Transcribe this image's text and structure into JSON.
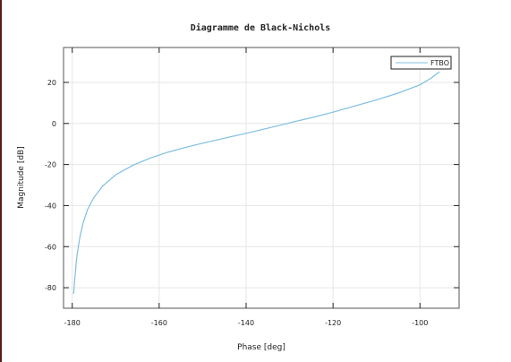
{
  "chart_data": {
    "type": "line",
    "title": "Diagramme de Black-Nichols",
    "xlabel": "Phase [deg]",
    "ylabel": "Magnitude [dB]",
    "xlim": [
      -182,
      -91
    ],
    "ylim": [
      -90,
      37
    ],
    "xticks": [
      -180,
      -160,
      -140,
      -120,
      -100
    ],
    "yticks": [
      -80,
      -60,
      -40,
      -20,
      0,
      20
    ],
    "grid": true,
    "legend_position": "top-right",
    "series": [
      {
        "name": "FTBO",
        "color": "#7fbfe0",
        "x": [
          -179.7,
          -179.3,
          -179.0,
          -178.6,
          -178.2,
          -177.5,
          -176.5,
          -175.0,
          -173.0,
          -170.0,
          -166.0,
          -162.0,
          -158.0,
          -154.0,
          -150.0,
          -145.0,
          -140.0,
          -135.0,
          -130.0,
          -125.0,
          -120.0,
          -115.0,
          -110.0,
          -105.0,
          -100.0,
          -97.5,
          -95.5
        ],
        "y": [
          -83.0,
          -73.0,
          -66.0,
          -60.0,
          -55.0,
          -48.5,
          -42.0,
          -36.0,
          -30.5,
          -25.0,
          -20.3,
          -16.8,
          -14.0,
          -11.7,
          -9.6,
          -7.2,
          -4.8,
          -2.3,
          0.3,
          2.8,
          5.5,
          8.5,
          11.5,
          14.8,
          18.8,
          22.0,
          25.2
        ]
      }
    ]
  }
}
